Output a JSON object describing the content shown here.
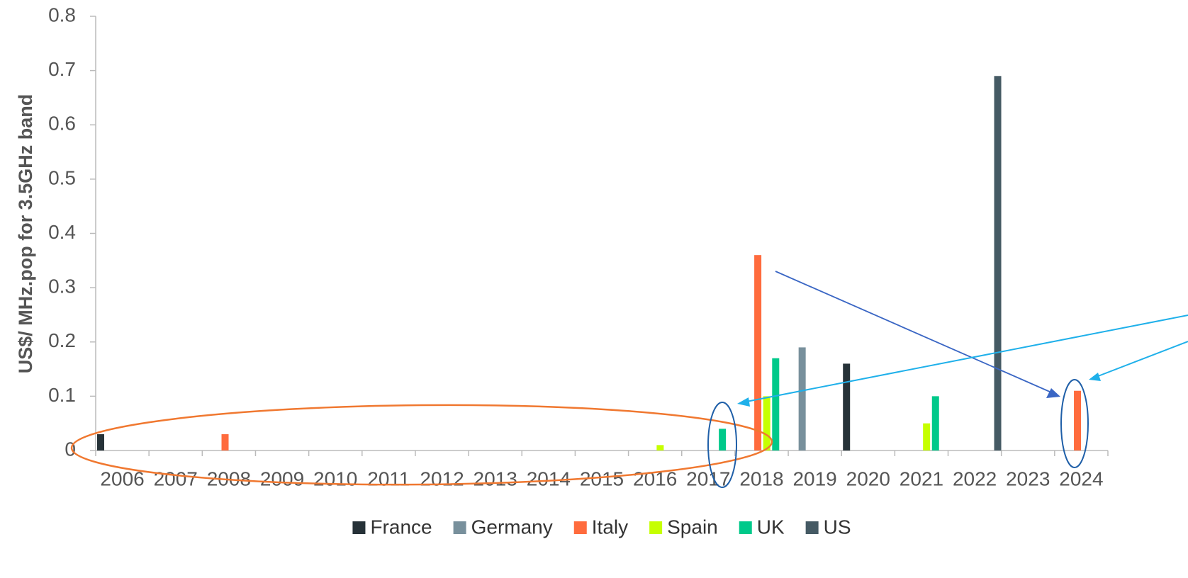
{
  "chart_data": {
    "type": "bar",
    "y_label": "US$/ MHz.pop for 3.5GHz band",
    "categories": [
      "2006",
      "2007",
      "2008",
      "2009",
      "2010",
      "2011",
      "2012",
      "2013",
      "2014",
      "2015",
      "2016",
      "2017",
      "2018",
      "2019",
      "2020",
      "2021",
      "2022",
      "2023",
      "2024"
    ],
    "series": [
      {
        "name": "France",
        "color": "#263238",
        "values": [
          0.03,
          null,
          null,
          null,
          null,
          null,
          null,
          null,
          null,
          null,
          null,
          null,
          null,
          null,
          0.16,
          null,
          null,
          null,
          null
        ]
      },
      {
        "name": "Germany",
        "color": "#78909c",
        "values": [
          null,
          null,
          null,
          null,
          null,
          null,
          null,
          null,
          null,
          null,
          null,
          null,
          null,
          0.19,
          null,
          null,
          null,
          null,
          null
        ]
      },
      {
        "name": "Italy",
        "color": "#ff6b3d",
        "values": [
          null,
          null,
          0.03,
          null,
          null,
          null,
          null,
          null,
          null,
          null,
          null,
          null,
          0.36,
          null,
          null,
          null,
          null,
          null,
          0.11
        ]
      },
      {
        "name": "Spain",
        "color": "#c6ff00",
        "values": [
          null,
          null,
          null,
          null,
          null,
          null,
          null,
          null,
          null,
          null,
          0.01,
          null,
          0.1,
          null,
          null,
          0.05,
          null,
          null,
          null
        ]
      },
      {
        "name": "UK",
        "color": "#00c98a",
        "values": [
          null,
          null,
          null,
          null,
          null,
          null,
          null,
          null,
          null,
          null,
          null,
          0.04,
          0.17,
          null,
          null,
          0.1,
          null,
          null,
          null
        ]
      },
      {
        "name": "US",
        "color": "#455a64",
        "values": [
          null,
          null,
          null,
          null,
          null,
          null,
          null,
          null,
          null,
          null,
          null,
          null,
          null,
          null,
          null,
          null,
          0.69,
          null,
          null
        ]
      }
    ],
    "ylim": [
      0,
      0.8
    ],
    "yticks": [
      0,
      0.1,
      0.2,
      0.3,
      0.4,
      0.5,
      0.6,
      0.7,
      0.8
    ],
    "grid": false,
    "legend": "bottom"
  }
}
